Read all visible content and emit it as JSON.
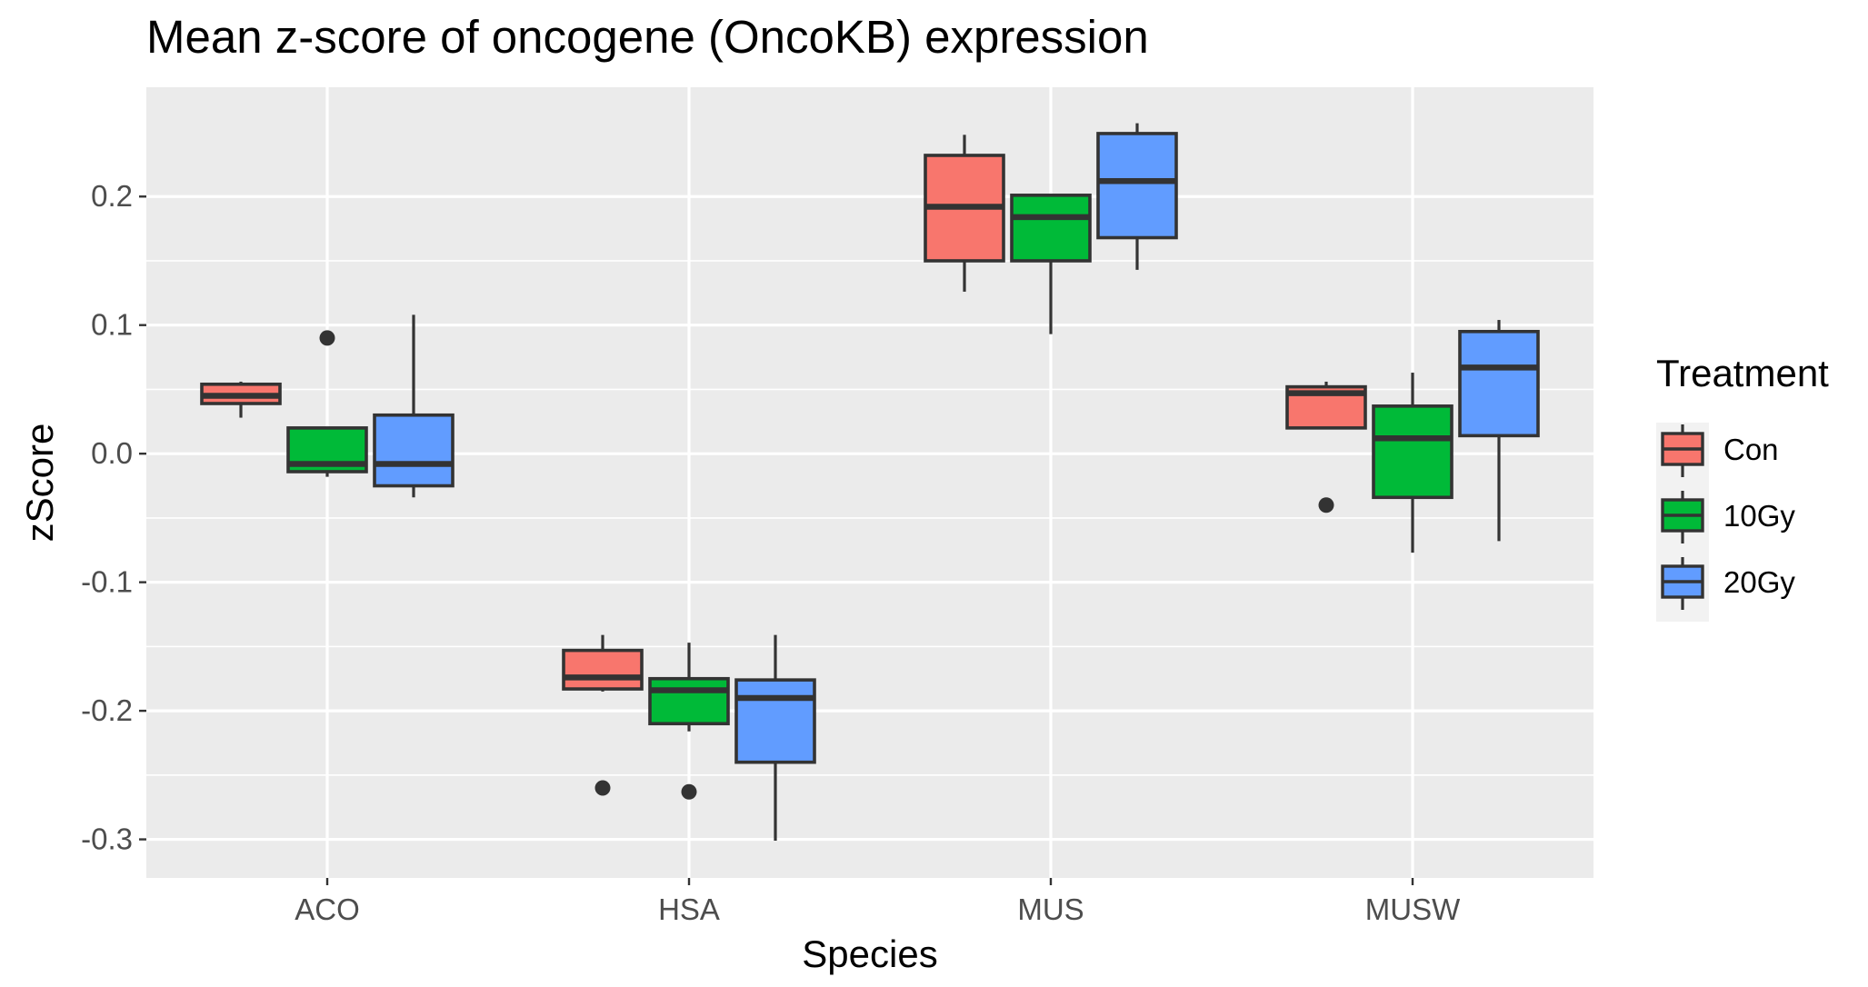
{
  "chart_data": {
    "type": "boxplot",
    "title": "Mean z-score of oncogene (OncoKB) expression",
    "xlabel": "Species",
    "ylabel": "zScore",
    "categories": [
      "ACO",
      "HSA",
      "MUS",
      "MUSW"
    ],
    "ylim": [
      -0.33,
      0.285
    ],
    "yticks": [
      -0.3,
      -0.2,
      -0.1,
      0.0,
      0.1,
      0.2
    ],
    "ytick_labels": [
      "-0.3",
      "-0.2",
      "-0.1",
      "0.0",
      "0.1",
      "0.2"
    ],
    "grid": true,
    "legend": {
      "title": "Treatment",
      "position": "right"
    },
    "series": [
      {
        "name": "Con",
        "color": "#F8766D",
        "boxes": [
          {
            "category": "ACO",
            "whisker_low": 0.028,
            "q1": 0.039,
            "median": 0.045,
            "q3": 0.054,
            "whisker_high": 0.056,
            "outliers": []
          },
          {
            "category": "HSA",
            "whisker_low": -0.185,
            "q1": -0.183,
            "median": -0.174,
            "q3": -0.153,
            "whisker_high": -0.141,
            "outliers": [
              -0.26
            ]
          },
          {
            "category": "MUS",
            "whisker_low": 0.126,
            "q1": 0.15,
            "median": 0.192,
            "q3": 0.232,
            "whisker_high": 0.248,
            "outliers": []
          },
          {
            "category": "MUSW",
            "whisker_low": 0.02,
            "q1": 0.02,
            "median": 0.047,
            "q3": 0.052,
            "whisker_high": 0.056,
            "outliers": [
              -0.04
            ]
          }
        ]
      },
      {
        "name": "10Gy",
        "color": "#00BA38",
        "boxes": [
          {
            "category": "ACO",
            "whisker_low": -0.018,
            "q1": -0.014,
            "median": -0.008,
            "q3": 0.02,
            "whisker_high": 0.02,
            "outliers": [
              0.09
            ]
          },
          {
            "category": "HSA",
            "whisker_low": -0.216,
            "q1": -0.21,
            "median": -0.184,
            "q3": -0.175,
            "whisker_high": -0.147,
            "outliers": [
              -0.263
            ]
          },
          {
            "category": "MUS",
            "whisker_low": 0.093,
            "q1": 0.15,
            "median": 0.184,
            "q3": 0.201,
            "whisker_high": 0.202,
            "outliers": []
          },
          {
            "category": "MUSW",
            "whisker_low": -0.077,
            "q1": -0.034,
            "median": 0.012,
            "q3": 0.037,
            "whisker_high": 0.063,
            "outliers": []
          }
        ]
      },
      {
        "name": "20Gy",
        "color": "#619CFF",
        "boxes": [
          {
            "category": "ACO",
            "whisker_low": -0.034,
            "q1": -0.025,
            "median": -0.008,
            "q3": 0.03,
            "whisker_high": 0.108,
            "outliers": []
          },
          {
            "category": "HSA",
            "whisker_low": -0.301,
            "q1": -0.24,
            "median": -0.19,
            "q3": -0.176,
            "whisker_high": -0.141,
            "outliers": []
          },
          {
            "category": "MUS",
            "whisker_low": 0.143,
            "q1": 0.168,
            "median": 0.212,
            "q3": 0.249,
            "whisker_high": 0.257,
            "outliers": []
          },
          {
            "category": "MUSW",
            "whisker_low": -0.068,
            "q1": 0.014,
            "median": 0.067,
            "q3": 0.095,
            "whisker_high": 0.104,
            "outliers": []
          }
        ]
      }
    ]
  }
}
